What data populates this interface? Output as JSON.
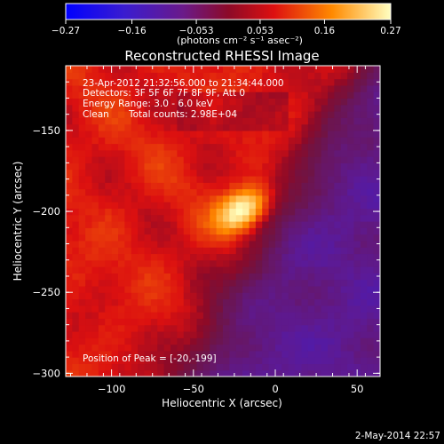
{
  "chart_data": {
    "type": "heatmap",
    "title": "Reconstructed RHESSI Image",
    "xlabel": "Heliocentric X (arcsec)",
    "ylabel": "Heliocentric Y (arcsec)",
    "xlim": [
      -128,
      64
    ],
    "ylim": [
      -302,
      -110
    ],
    "x_ticks": [
      -100,
      -50,
      0,
      50
    ],
    "x_tick_labels": [
      "−100",
      "−50",
      "0",
      "50"
    ],
    "y_ticks": [
      -150,
      -200,
      -250,
      -300
    ],
    "y_tick_labels": [
      "−150",
      "−200",
      "−250",
      "−300"
    ],
    "colorbar": {
      "range": [
        -0.27,
        0.27
      ],
      "ticks": [
        -0.27,
        -0.16,
        -0.053,
        0.053,
        0.16,
        0.27
      ],
      "tick_labels": [
        "−0.27",
        "−0.16",
        "−0.053",
        "0.053",
        "0.16",
        "0.27"
      ],
      "unit_label": "(photons cm⁻² s⁻¹ asec⁻²)",
      "colormap": [
        "#0000ff",
        "#5a1a9a",
        "#8a0b2a",
        "#e01010",
        "#ff8000",
        "#ffffa0"
      ]
    },
    "peak": {
      "x": -20,
      "y": -199,
      "value": 0.27
    },
    "annotations": {
      "time_range": "23-Apr-2012 21:32:56.000 to 21:34:44.000",
      "detectors": "Detectors: 3F 5F 6F 7F 8F 9F, Att 0",
      "energy": "Energy Range: 3.0 - 6.0 keV",
      "method": "Clean",
      "counts": "Total counts: 2.98E+04",
      "peak_position": "Position of Peak = [-20,-199]"
    },
    "footer_date": "2-May-2014 22:57",
    "colors": {
      "background": "#000000",
      "text": "#ffffff"
    }
  }
}
